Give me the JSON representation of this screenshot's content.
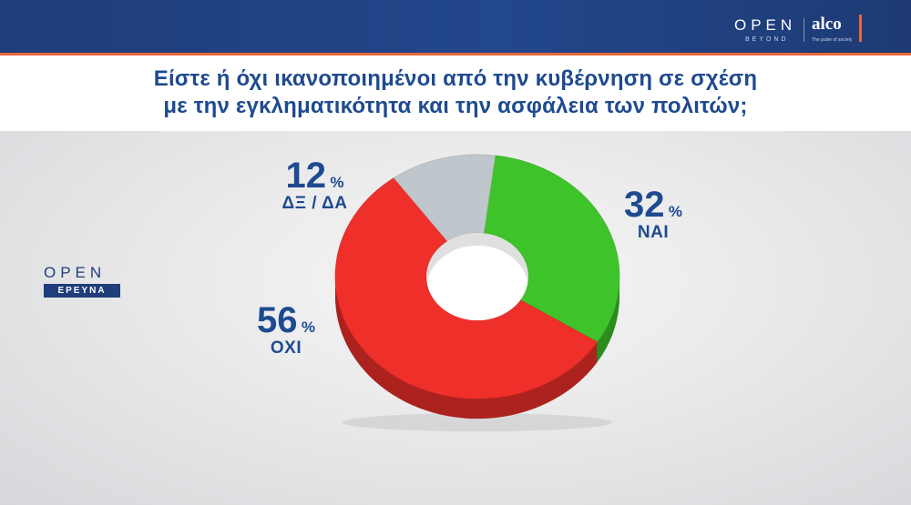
{
  "header": {
    "brand_open": "OPEN",
    "brand_beyond": "BEYOND",
    "brand_alco": "alco",
    "brand_tagline": "The pulse of society"
  },
  "title_line1": "Είστε ή όχι ικανοποιημένοι από την κυβέρνηση σε σχέση",
  "title_line2": "με την εγκληματικότητα και την ασφάλεια των πολιτών;",
  "side_logo": {
    "open": "OPEN",
    "erevna": "ΕΡΕΥΝΑ"
  },
  "chart_data": {
    "type": "pie",
    "style": "3d-donut",
    "title": "Είστε ή όχι ικανοποιημένοι από την κυβέρνηση σε σχέση με την εγκληματικότητα και την ασφάλεια των πολιτών;",
    "unit": "%",
    "categories": [
      "ΝΑΙ",
      "ΟΧΙ",
      "ΔΞ / ΔΑ"
    ],
    "values": [
      32,
      56,
      12
    ],
    "colors": [
      "#3fc32b",
      "#ef2f2a",
      "#bfc7cc"
    ],
    "labels": [
      {
        "category": "ΝΑΙ",
        "value": "32",
        "unit": "%"
      },
      {
        "category": "ΟΧΙ",
        "value": "56",
        "unit": "%"
      },
      {
        "category": "ΔΞ / ΔΑ",
        "value": "12",
        "unit": "%"
      }
    ]
  }
}
